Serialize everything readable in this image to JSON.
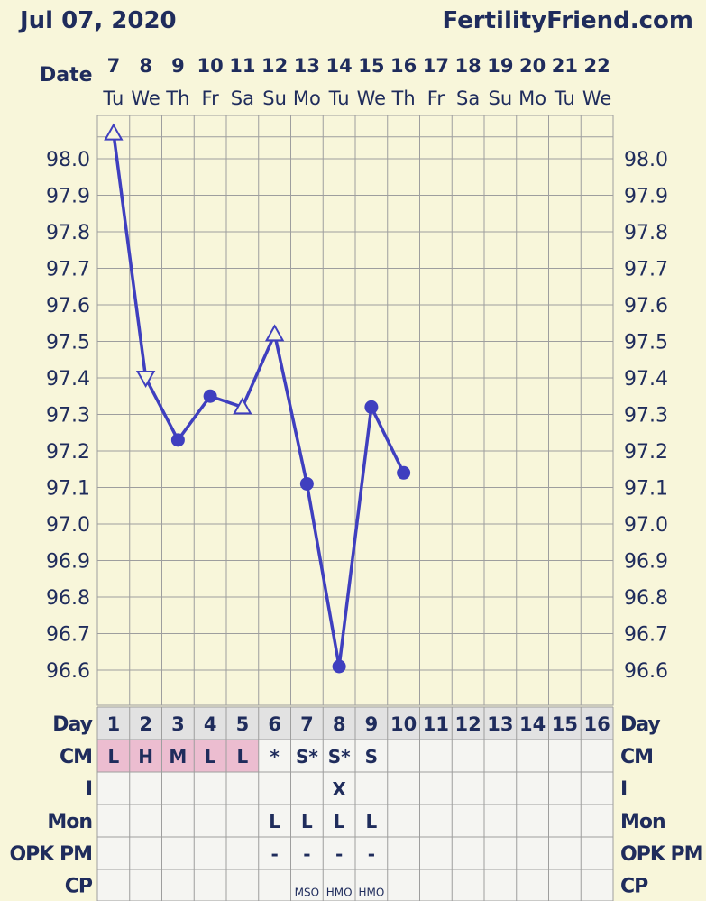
{
  "header": {
    "date": "Jul 07, 2020",
    "site": "FertilityFriend.com"
  },
  "labels": {
    "date": "Date",
    "day": "Day",
    "cm": "CM",
    "i": "I",
    "mon": "Mon",
    "opk": "OPK PM",
    "cp": "CP"
  },
  "colors": {
    "background": "#f8f6da",
    "grid": "#9e9e9e",
    "line": "#3f3fbf",
    "text": "#1f2c5c",
    "table_bg": "#f5f5f2",
    "day_row_bg": "#e2e2e2",
    "cm_highlight": "#ecbdd0"
  },
  "chart_data": {
    "type": "line",
    "columns": 16,
    "dates": [
      "7",
      "8",
      "9",
      "10",
      "11",
      "12",
      "13",
      "14",
      "15",
      "16",
      "17",
      "18",
      "19",
      "20",
      "21",
      "22"
    ],
    "weekdays": [
      "Tu",
      "We",
      "Th",
      "Fr",
      "Sa",
      "Su",
      "Mo",
      "Tu",
      "We",
      "Th",
      "Fr",
      "Sa",
      "Su",
      "Mo",
      "Tu",
      "We"
    ],
    "cycle_days": [
      "1",
      "2",
      "3",
      "4",
      "5",
      "6",
      "7",
      "8",
      "9",
      "10",
      "11",
      "12",
      "13",
      "14",
      "15",
      "16"
    ],
    "ylim": [
      96.5,
      98.1
    ],
    "yticks": [
      "98.0",
      "97.9",
      "97.8",
      "97.7",
      "97.6",
      "97.5",
      "97.4",
      "97.3",
      "97.2",
      "97.1",
      "97.0",
      "96.9",
      "96.8",
      "96.7",
      "96.6"
    ],
    "points": [
      {
        "day": 1,
        "value": 98.07,
        "marker": "triangle-up"
      },
      {
        "day": 2,
        "value": 97.4,
        "marker": "triangle-down"
      },
      {
        "day": 3,
        "value": 97.23,
        "marker": "dot"
      },
      {
        "day": 4,
        "value": 97.35,
        "marker": "dot"
      },
      {
        "day": 5,
        "value": 97.32,
        "marker": "triangle-up"
      },
      {
        "day": 6,
        "value": 97.52,
        "marker": "triangle-up"
      },
      {
        "day": 7,
        "value": 97.11,
        "marker": "dot"
      },
      {
        "day": 8,
        "value": 96.61,
        "marker": "dot"
      },
      {
        "day": 9,
        "value": 97.32,
        "marker": "dot"
      },
      {
        "day": 10,
        "value": 97.14,
        "marker": "dot"
      }
    ],
    "rows": {
      "cm": [
        "L",
        "H",
        "M",
        "L",
        "L",
        "*",
        "S*",
        "S*",
        "S",
        "",
        "",
        "",
        "",
        "",
        "",
        ""
      ],
      "i": [
        "",
        "",
        "",
        "",
        "",
        "",
        "",
        "X",
        "",
        "",
        "",
        "",
        "",
        "",
        "",
        ""
      ],
      "mon": [
        "",
        "",
        "",
        "",
        "",
        "L",
        "L",
        "L",
        "L",
        "",
        "",
        "",
        "",
        "",
        "",
        ""
      ],
      "opk": [
        "",
        "",
        "",
        "",
        "",
        "-",
        "-",
        "-",
        "-",
        "",
        "",
        "",
        "",
        "",
        "",
        ""
      ],
      "cp": [
        "",
        "",
        "",
        "",
        "",
        "",
        "MSO",
        "HMO",
        "HMO",
        "",
        "",
        "",
        "",
        "",
        "",
        ""
      ]
    },
    "cm_highlight_days": [
      1,
      2,
      3,
      4,
      5
    ]
  }
}
